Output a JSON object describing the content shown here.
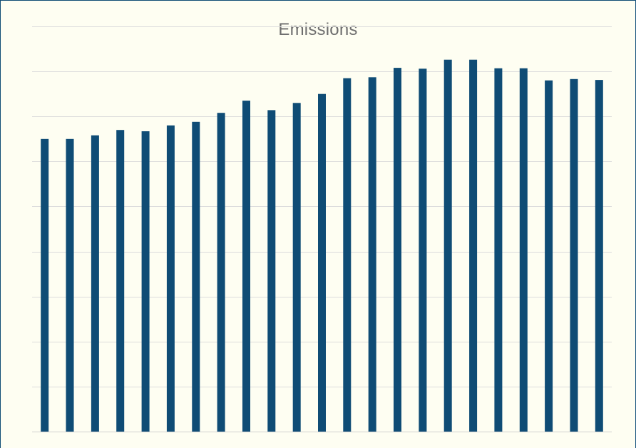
{
  "chart_data": {
    "type": "bar",
    "title": "Emissions",
    "xlabel": "",
    "ylabel": "",
    "categories": [
      "",
      "",
      "",
      "",
      "",
      "",
      "",
      "",
      "",
      "",
      "",
      "",
      "",
      "",
      "",
      "",
      "",
      "",
      "",
      "",
      "",
      "",
      ""
    ],
    "values": [
      6.5,
      6.5,
      6.58,
      6.7,
      6.67,
      6.8,
      6.88,
      7.08,
      7.35,
      7.14,
      7.3,
      7.5,
      7.85,
      7.87,
      8.08,
      8.06,
      8.26,
      8.26,
      8.07,
      8.07,
      7.8,
      7.83,
      7.81
    ],
    "ylim": [
      0,
      9
    ],
    "gridlines": true,
    "tick_labels_visible": false,
    "legend": "none",
    "colors": {
      "bar": "#0f4c75",
      "grid": "#dcdcdc",
      "frame": "#0f4c75",
      "background": "#fefef2",
      "title": "#6e6e6e"
    }
  }
}
